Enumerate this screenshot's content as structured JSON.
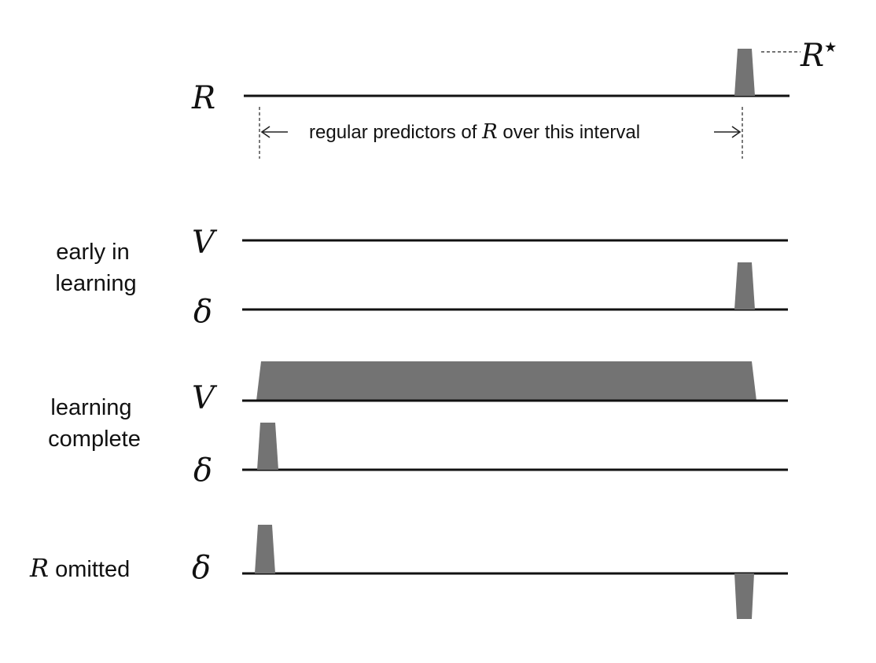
{
  "colors": {
    "pulse": "#737373",
    "line": "#111111"
  },
  "reward_row": {
    "symbol": "R",
    "peak_label": {
      "main": "R",
      "superscript": "★"
    },
    "interval_annotation": {
      "prefix": "regular predictors of ",
      "symbol": "R",
      "suffix": " over this interval"
    }
  },
  "groups": [
    {
      "label_lines": [
        "early in",
        "learning"
      ],
      "rows": [
        {
          "symbol": "V"
        },
        {
          "symbol": "δ"
        }
      ]
    },
    {
      "label_lines": [
        "learning",
        "complete"
      ],
      "rows": [
        {
          "symbol": "V"
        },
        {
          "symbol": "δ"
        }
      ]
    },
    {
      "label_symbol": "R",
      "label_text": " omitted",
      "rows": [
        {
          "symbol": "δ"
        }
      ]
    }
  ]
}
